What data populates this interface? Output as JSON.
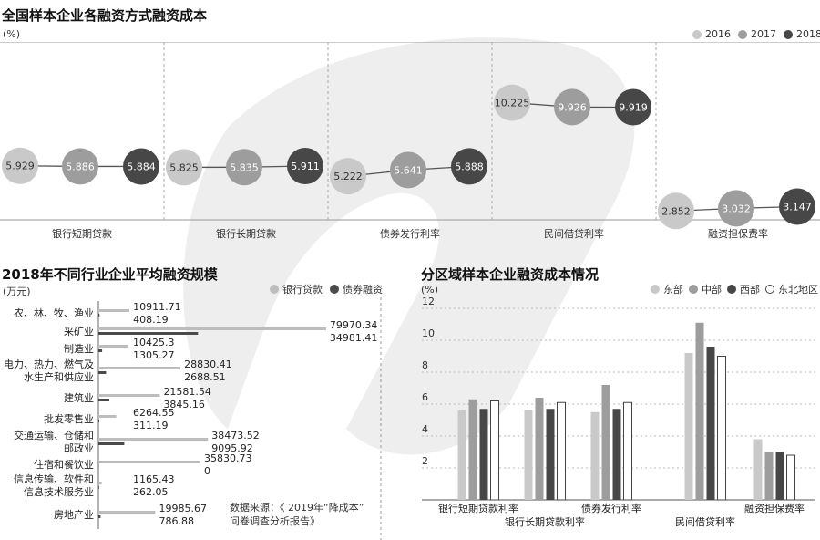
{
  "colors": {
    "c2016": "#c9c9c9",
    "c2017": "#9d9d9d",
    "c2018": "#474747",
    "bank": "#bdbdbd",
    "bond": "#4a4a4a",
    "east": "#c9c9c9",
    "central": "#9d9d9d",
    "west": "#474747",
    "northeast": "#ffffff",
    "watermark": "#eeeeee"
  },
  "top": {
    "title": "全国样本企业各融资方式融资成本",
    "unit": "(%)",
    "legend": [
      "2016",
      "2017",
      "2018"
    ]
  },
  "left": {
    "title": "2018年不同行业企业平均融资规模",
    "unit": "(万元)",
    "legend": [
      "银行贷款",
      "债券融资"
    ],
    "source": [
      "数据来源：《 2019年“降成本”",
      "问卷调查分析报告》"
    ]
  },
  "right": {
    "title": "分区域样本企业融资成本情况",
    "unit": "(%)",
    "legend": [
      "东部",
      "中部",
      "西部",
      "东北地区"
    ]
  },
  "chart_data": [
    {
      "type": "scatter",
      "categories": [
        "银行短期贷款",
        "银行长期贷款",
        "债券发行利率",
        "民间借贷利率",
        "融资担保费率"
      ],
      "series": [
        {
          "name": "2016",
          "values": [
            5.929,
            5.825,
            5.222,
            10.225,
            2.852
          ]
        },
        {
          "name": "2017",
          "values": [
            5.886,
            5.835,
            5.641,
            9.926,
            3.032
          ]
        },
        {
          "name": "2018",
          "values": [
            5.884,
            5.911,
            5.888,
            9.919,
            3.147
          ]
        }
      ],
      "value_labels": [
        [
          "5.929",
          "5.825",
          "5.222",
          "10.225",
          "2.852"
        ],
        [
          "5.886",
          "5.835",
          "5.641",
          "9.926",
          "3.032"
        ],
        [
          "5.884",
          "5.911",
          "5.888",
          "9.919",
          "3.147"
        ]
      ],
      "title": "全国样本企业各融资方式融资成本",
      "ylabel": "(%)",
      "legend": "top-right"
    },
    {
      "type": "bar",
      "orientation": "horizontal",
      "categories": [
        [
          "农、林、牧、渔业"
        ],
        [
          "采矿业"
        ],
        [
          "制造业"
        ],
        [
          "电力、热力、燃气及",
          "水生产和供应业"
        ],
        [
          "建筑业"
        ],
        [
          "批发零售业"
        ],
        [
          "交通运输、仓储和",
          "邮政业"
        ],
        [
          "住宿和餐饮业"
        ],
        [
          "信息传输、软件和",
          "信息技术服务业"
        ],
        [
          "房地产业"
        ]
      ],
      "series": [
        {
          "name": "银行贷款",
          "values": [
            10911.71,
            79970.34,
            10425.3,
            28830.41,
            21581.54,
            6264.55,
            38473.52,
            35830.73,
            1165.43,
            19985.67
          ]
        },
        {
          "name": "债券融资",
          "values": [
            408.19,
            34981.41,
            1305.27,
            2688.51,
            3845.16,
            311.19,
            9095.92,
            0,
            262.05,
            786.88
          ]
        }
      ],
      "value_labels": [
        [
          "10911.71",
          "79970.34",
          "10425.3",
          "28830.41",
          "21581.54",
          "6264.55",
          "38473.52",
          "35830.73",
          "1165.43",
          "19985.67"
        ],
        [
          "408.19",
          "34981.41",
          "1305.27",
          "2688.51",
          "3845.16",
          "311.19",
          "9095.92",
          "0",
          "262.05",
          "786.88"
        ]
      ],
      "title": "2018年不同行业企业平均融资规模",
      "ylabel": "(万元)",
      "legend": "top-right"
    },
    {
      "type": "bar",
      "categories": [
        "银行短期贷款利率",
        "银行长期贷款利率",
        "债券发行利率",
        "民间借贷利率",
        "融资担保费率"
      ],
      "series": [
        {
          "name": "东部",
          "values": [
            5.6,
            5.6,
            5.5,
            9.2,
            3.8
          ]
        },
        {
          "name": "中部",
          "values": [
            6.3,
            6.4,
            7.2,
            11.1,
            3.0
          ]
        },
        {
          "name": "西部",
          "values": [
            5.7,
            5.7,
            5.7,
            9.6,
            3.0
          ]
        },
        {
          "name": "东北地区",
          "values": [
            6.2,
            6.1,
            6.1,
            9.0,
            2.8
          ]
        }
      ],
      "yticks": [
        "2",
        "4",
        "6",
        "8",
        "10",
        "12"
      ],
      "ylim": [
        0,
        12
      ],
      "title": "分区域样本企业融资成本情况",
      "ylabel": "(%)",
      "legend": "top-right"
    }
  ]
}
